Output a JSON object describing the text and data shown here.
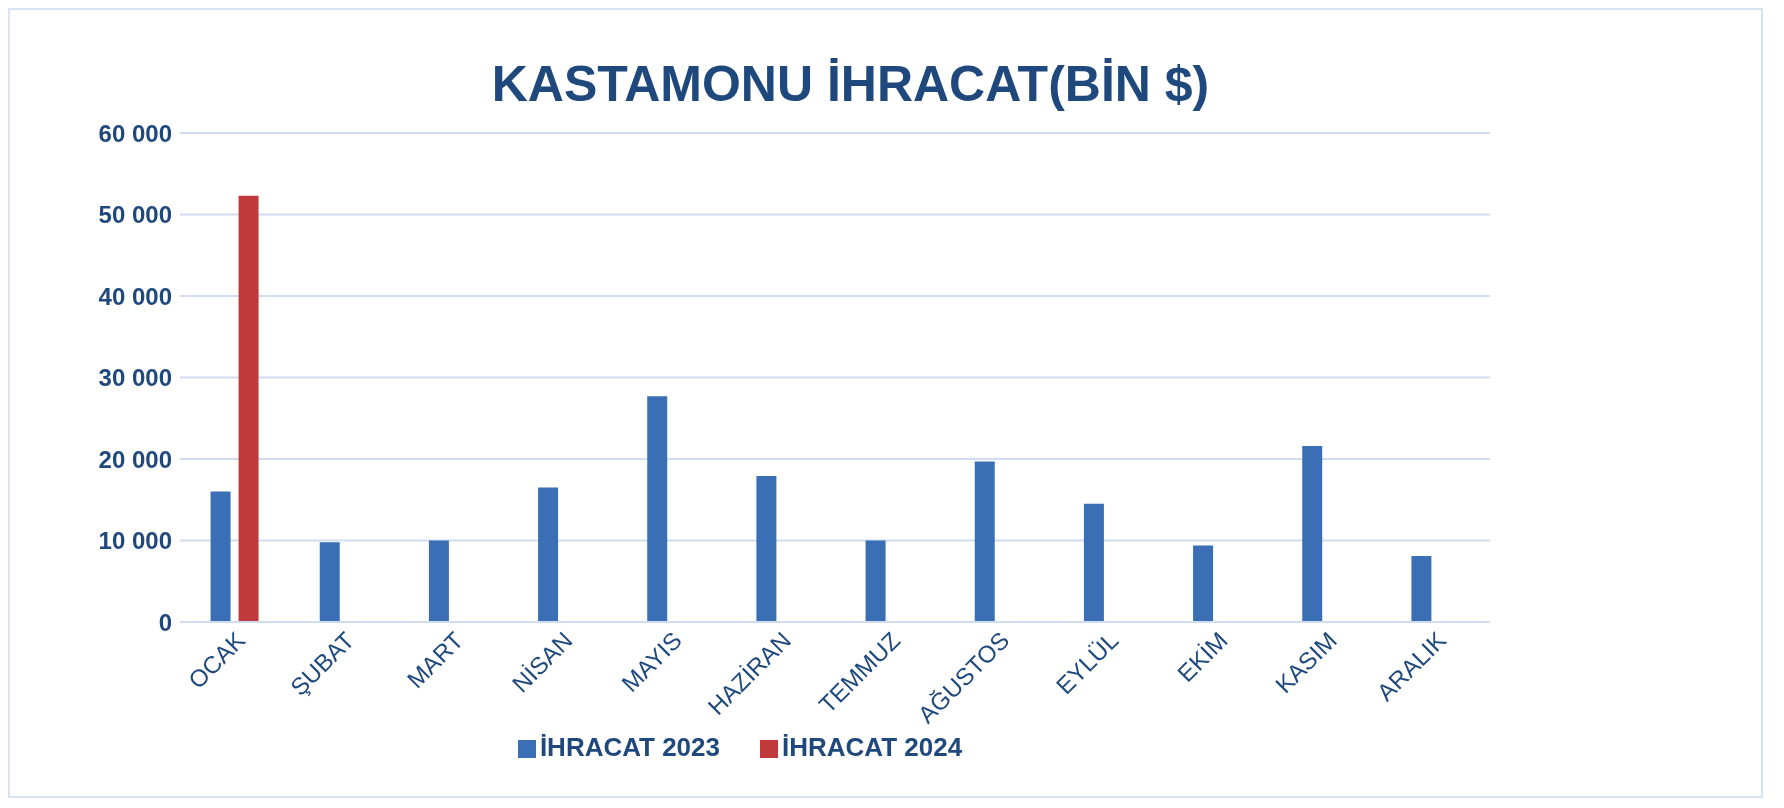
{
  "chart_data": {
    "type": "bar",
    "title": "KASTAMONU İHRACAT(BİN $)",
    "categories": [
      "OCAK",
      "ŞUBAT",
      "MART",
      "NİSAN",
      "MAYIS",
      "HAZİRAN",
      "TEMMUZ",
      "AĞUSTOS",
      "EYLÜL",
      "EKİM",
      "KASIM",
      "ARALIK"
    ],
    "series": [
      {
        "name": "İHRACAT 2023",
        "color": "#3a6fb5",
        "values": [
          16000,
          9800,
          10000,
          16500,
          27700,
          17900,
          10000,
          19700,
          14500,
          9400,
          21600,
          8100
        ]
      },
      {
        "name": "İHRACAT 2024",
        "color": "#c0393b",
        "values": [
          52300,
          null,
          null,
          null,
          null,
          null,
          null,
          null,
          null,
          null,
          null,
          null
        ]
      }
    ],
    "ylim": [
      0,
      60000
    ],
    "yticks": [
      {
        "value": 0,
        "label": "0"
      },
      {
        "value": 10000,
        "label": "10 000"
      },
      {
        "value": 20000,
        "label": "20 000"
      },
      {
        "value": 30000,
        "label": "30 000"
      },
      {
        "value": 40000,
        "label": "40 000"
      },
      {
        "value": 50000,
        "label": "50 000"
      },
      {
        "value": 60000,
        "label": "60 000"
      }
    ],
    "grid": "y",
    "legend": "bottom"
  }
}
